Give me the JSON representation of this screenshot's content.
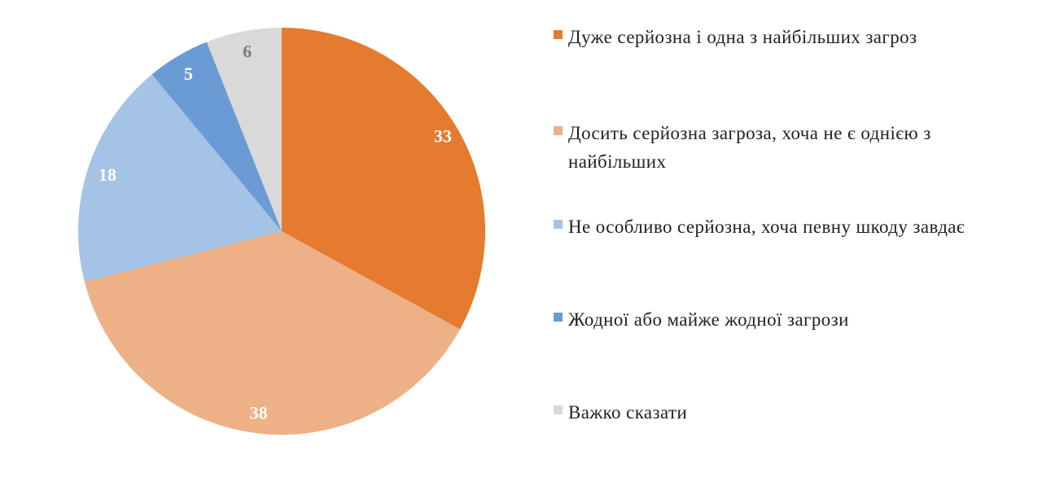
{
  "chart_data": {
    "type": "pie",
    "title": "",
    "slices": [
      {
        "label": "Дуже серйозна і одна з найбільших загроз",
        "value": 33,
        "color": "#E47B2F",
        "label_color": "#ffffff"
      },
      {
        "label": "Досить серйозна загроза, хоча не є однією з найбільших",
        "value": 38,
        "color": "#EEB085",
        "label_color": "#ffffff"
      },
      {
        "label": "Не особливо серйозна, хоча певну шкоду завдає",
        "value": 18,
        "color": "#A4C3E5",
        "label_color": "#ffffff"
      },
      {
        "label": "Жодної або майже жодної загрози",
        "value": 5,
        "color": "#6A9BD4",
        "label_color": "#ffffff"
      },
      {
        "label": "Важко сказати",
        "value": 6,
        "color": "#D9D9D9",
        "label_color": "#7f7f7f"
      }
    ],
    "legend_position": "right",
    "start_angle": "top",
    "direction": "clockwise"
  }
}
